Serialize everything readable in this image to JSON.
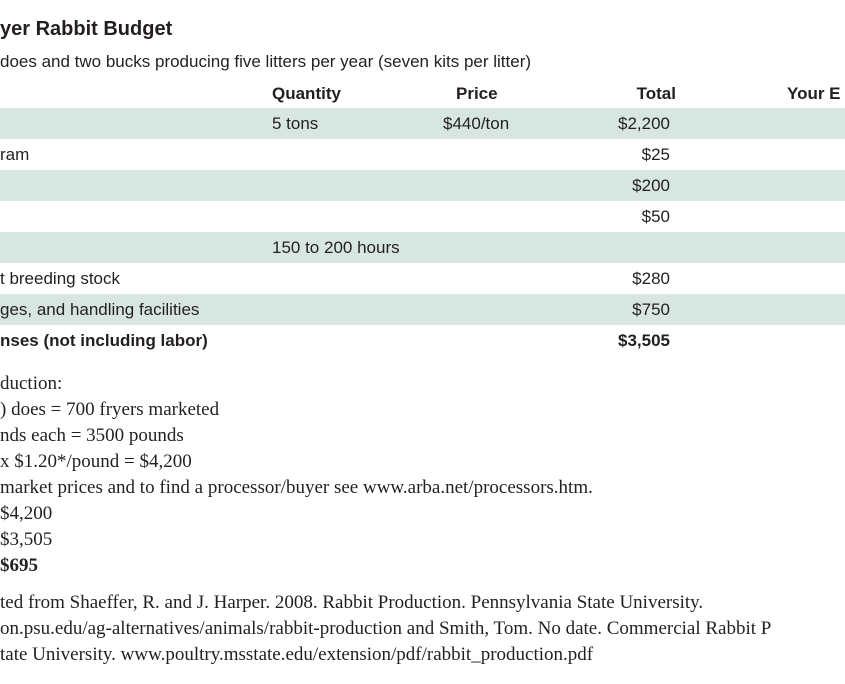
{
  "header": {
    "title": "yer Rabbit Budget",
    "subtitle": "does and two bucks producing five litters per year (seven kits per litter)"
  },
  "table": {
    "columns": [
      "Quantity",
      "Price",
      "Total",
      "Your E"
    ],
    "rows": [
      {
        "quantity": "5 tons",
        "price": "$440/ton",
        "total": "$2,200"
      },
      {
        "label": "ram",
        "total": "$25"
      },
      {
        "total": "$200"
      },
      {
        "total": "$50"
      },
      {
        "quantity": "150 to 200 hours"
      },
      {
        "label": "t breeding stock",
        "total": "$280"
      },
      {
        "label": "ges, and handling facilities",
        "total": "$750"
      },
      {
        "label": "nses (not including labor)",
        "total": "$3,505"
      }
    ]
  },
  "notes": [
    "duction:",
    ") does = 700 fryers marketed",
    "nds each  = 3500 pounds",
    " x $1.20*/pound = $4,200",
    "market prices and to find a processor/buyer see www.arba.net/processors.htm.",
    "$4,200",
    "$3,505",
    "$695"
  ],
  "sources": [
    "ted from Shaeffer, R. and J. Harper. 2008. Rabbit Production. Pennsylvania State University.",
    "on.psu.edu/ag-alternatives/animals/rabbit-production and Smith, Tom. No date. Commercial Rabbit P",
    "tate University. www.poultry.msstate.edu/extension/pdf/rabbit_production.pdf"
  ]
}
